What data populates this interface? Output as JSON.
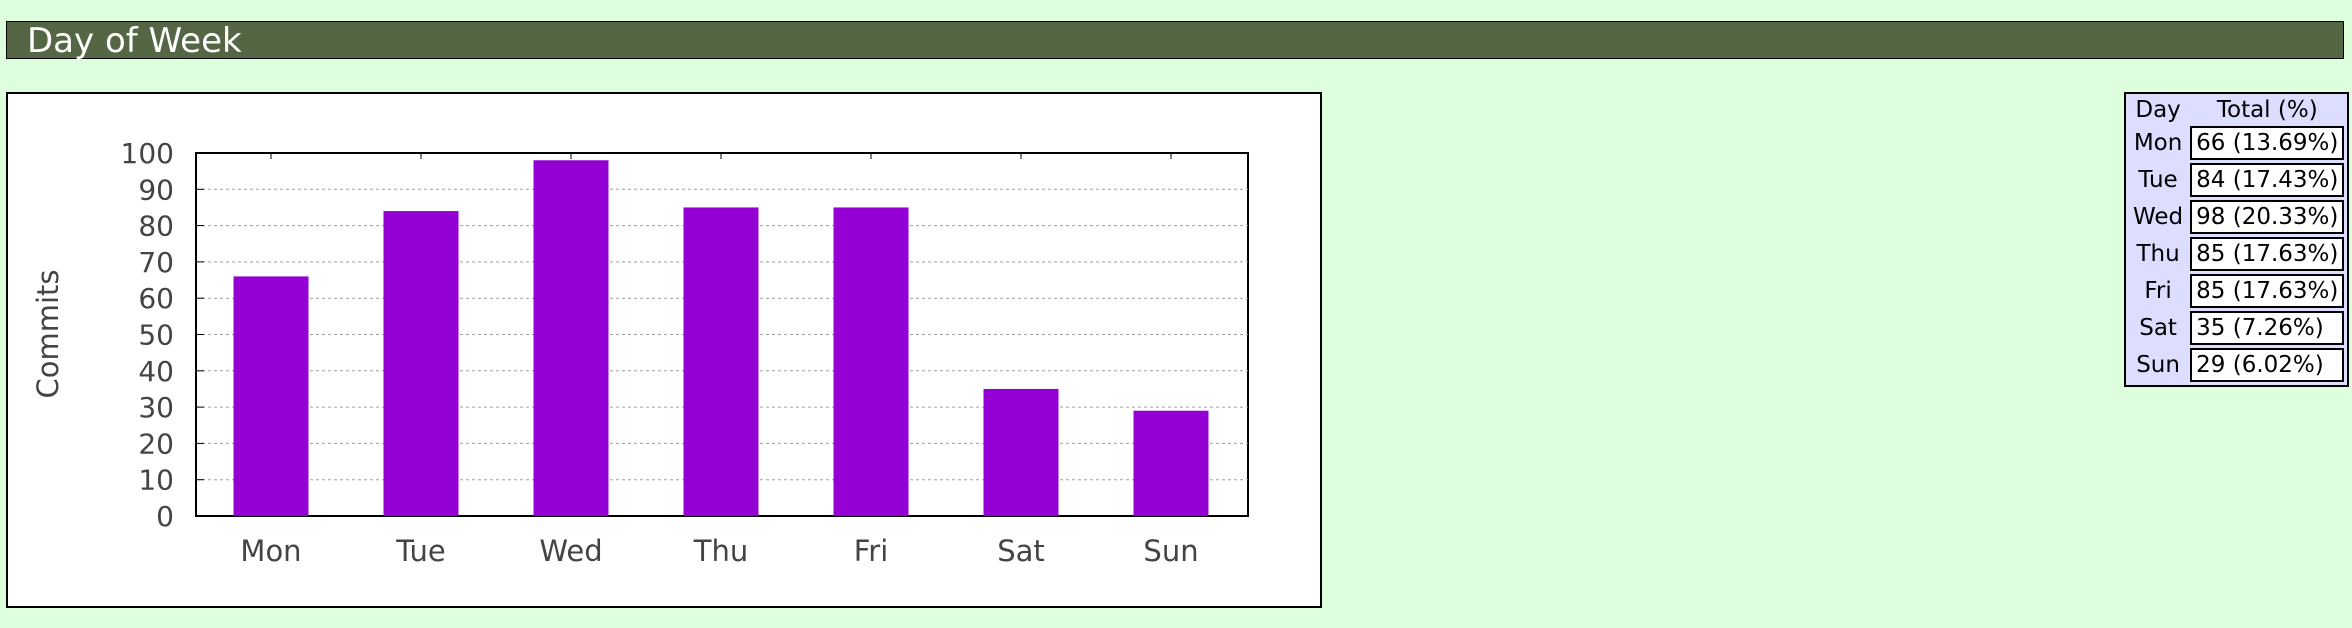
{
  "header": {
    "title": "Day of Week"
  },
  "chart_data": {
    "type": "bar",
    "categories": [
      "Mon",
      "Tue",
      "Wed",
      "Thu",
      "Fri",
      "Sat",
      "Sun"
    ],
    "values": [
      66,
      84,
      98,
      85,
      85,
      35,
      29
    ],
    "title": "",
    "xlabel": "",
    "ylabel": "Commits",
    "ylim": [
      0,
      100
    ],
    "yticks": [
      0,
      10,
      20,
      30,
      40,
      50,
      60,
      70,
      80,
      90,
      100
    ],
    "ytick_labels": [
      "0",
      "10",
      "20",
      "30",
      "40",
      "50",
      "60",
      "70",
      "80",
      "90",
      "100"
    ],
    "grid": true,
    "bar_color": "#9400d3"
  },
  "table": {
    "headers": [
      "Day",
      "Total (%)"
    ],
    "rows": [
      {
        "day": "Mon",
        "total": "66 (13.69%)"
      },
      {
        "day": "Tue",
        "total": "84 (17.43%)"
      },
      {
        "day": "Wed",
        "total": "98 (20.33%)"
      },
      {
        "day": "Thu",
        "total": "85 (17.63%)"
      },
      {
        "day": "Fri",
        "total": "85 (17.63%)"
      },
      {
        "day": "Sat",
        "total": "35 (7.26%)"
      },
      {
        "day": "Sun",
        "total": "29 (6.02%)"
      }
    ]
  }
}
